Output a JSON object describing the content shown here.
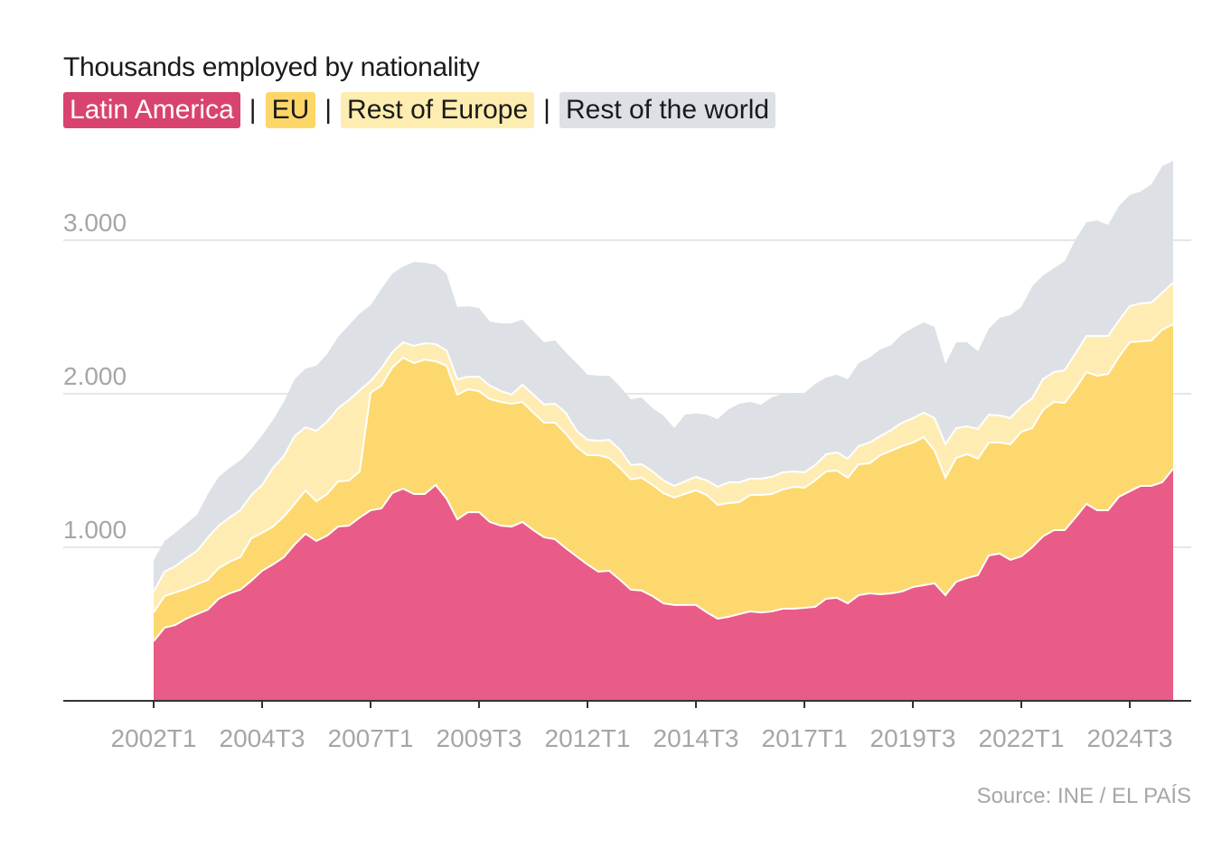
{
  "chart_data": {
    "type": "area",
    "stacked": true,
    "title": "Thousands employed by nationality",
    "source": "Source: INE / EL PAÍS",
    "x_ticks": [
      "2002T1",
      "2004T3",
      "2007T1",
      "2009T3",
      "2012T1",
      "2014T3",
      "2017T1",
      "2019T3",
      "2022T1",
      "2024T3"
    ],
    "y_ticks": [
      {
        "value": 1000,
        "label": "1.000"
      },
      {
        "value": 2000,
        "label": "2.000"
      },
      {
        "value": 3000,
        "label": "3.000"
      }
    ],
    "ylim": [
      0,
      3600
    ],
    "grid": true,
    "legend_placement": "top-left",
    "x": [
      "2002T1",
      "2002T2",
      "2002T3",
      "2002T4",
      "2003T1",
      "2003T2",
      "2003T3",
      "2003T4",
      "2004T1",
      "2004T2",
      "2004T3",
      "2004T4",
      "2005T1",
      "2005T2",
      "2005T3",
      "2005T4",
      "2006T1",
      "2006T2",
      "2006T3",
      "2006T4",
      "2007T1",
      "2007T2",
      "2007T3",
      "2007T4",
      "2008T1",
      "2008T2",
      "2008T3",
      "2008T4",
      "2009T1",
      "2009T2",
      "2009T3",
      "2009T4",
      "2010T1",
      "2010T2",
      "2010T3",
      "2010T4",
      "2011T1",
      "2011T2",
      "2011T3",
      "2011T4",
      "2012T1",
      "2012T2",
      "2012T3",
      "2012T4",
      "2013T1",
      "2013T2",
      "2013T3",
      "2013T4",
      "2014T1",
      "2014T2",
      "2014T3",
      "2014T4",
      "2015T1",
      "2015T2",
      "2015T3",
      "2015T4",
      "2016T1",
      "2016T2",
      "2016T3",
      "2016T4",
      "2017T1",
      "2017T2",
      "2017T3",
      "2017T4",
      "2018T1",
      "2018T2",
      "2018T3",
      "2018T4",
      "2019T1",
      "2019T2",
      "2019T3",
      "2019T4",
      "2020T1",
      "2020T2",
      "2020T3",
      "2020T4",
      "2021T1",
      "2021T2",
      "2021T3",
      "2021T4",
      "2022T1",
      "2022T2",
      "2022T3",
      "2022T4",
      "2023T1",
      "2023T2",
      "2023T3",
      "2023T4",
      "2024T1",
      "2024T2",
      "2024T3",
      "2024T4",
      "2025T1",
      "2025T2",
      "2025T3"
    ],
    "series": [
      {
        "name": "Latin America",
        "color": "#e95c87",
        "label_bg": "#d8436f",
        "label_color": "#ffffff",
        "values": [
          388,
          476,
          494,
          535,
          565,
          594,
          665,
          700,
          724,
          782,
          847,
          888,
          935,
          1018,
          1088,
          1041,
          1076,
          1135,
          1141,
          1194,
          1241,
          1253,
          1353,
          1382,
          1347,
          1347,
          1406,
          1318,
          1182,
          1229,
          1229,
          1165,
          1141,
          1135,
          1165,
          1112,
          1065,
          1053,
          994,
          941,
          888,
          841,
          847,
          788,
          724,
          718,
          682,
          635,
          624,
          624,
          624,
          576,
          535,
          547,
          565,
          582,
          576,
          582,
          600,
          600,
          606,
          612,
          665,
          671,
          635,
          688,
          700,
          694,
          700,
          712,
          741,
          753,
          765,
          688,
          776,
          800,
          818,
          947,
          959,
          918,
          941,
          1000,
          1071,
          1112,
          1112,
          1194,
          1282,
          1241,
          1241,
          1329,
          1365,
          1400,
          1400,
          1424,
          1512
        ]
      },
      {
        "name": "EU",
        "color": "#fdd86e",
        "label_bg": "#fdd668",
        "label_color": "#1a1a1a",
        "values": [
          188,
          206,
          212,
          194,
          194,
          194,
          200,
          206,
          212,
          276,
          247,
          247,
          265,
          265,
          282,
          259,
          271,
          294,
          294,
          300,
          765,
          800,
          818,
          853,
          853,
          876,
          806,
          865,
          812,
          800,
          788,
          800,
          806,
          800,
          782,
          765,
          747,
          759,
          747,
          712,
          712,
          759,
          735,
          729,
          718,
          735,
          724,
          718,
          700,
          724,
          747,
          765,
          741,
          741,
          729,
          759,
          765,
          765,
          776,
          794,
          782,
          824,
          829,
          829,
          818,
          853,
          847,
          906,
          929,
          947,
          941,
          965,
          865,
          765,
          806,
          806,
          759,
          735,
          724,
          753,
          812,
          776,
          824,
          835,
          829,
          841,
          859,
          876,
          888,
          912,
          971,
          941,
          947,
          994,
          941
        ]
      },
      {
        "name": "Rest of Europe",
        "color": "#feecb3",
        "label_bg": "#feedb0",
        "label_color": "#1a1a1a",
        "values": [
          135,
          159,
          171,
          200,
          218,
          276,
          276,
          288,
          306,
          282,
          312,
          382,
          394,
          441,
          412,
          459,
          471,
          476,
          524,
          529,
          76,
          112,
          100,
          100,
          112,
          106,
          112,
          100,
          100,
          82,
          94,
          88,
          71,
          59,
          112,
          118,
          118,
          124,
          135,
          106,
          100,
          94,
          118,
          118,
          94,
          88,
          88,
          82,
          76,
          82,
          88,
          94,
          118,
          135,
          129,
          106,
          106,
          112,
          112,
          100,
          100,
          100,
          112,
          118,
          124,
          118,
          135,
          124,
          135,
          153,
          159,
          159,
          212,
          218,
          194,
          182,
          194,
          182,
          176,
          171,
          165,
          194,
          200,
          194,
          212,
          229,
          235,
          259,
          247,
          235,
          235,
          247,
          247,
          241,
          271
        ]
      },
      {
        "name": "Rest of the world",
        "color": "#dde1e5",
        "label_bg": "#dde1e5",
        "label_color": "#1a1a1a",
        "values": [
          206,
          200,
          218,
          224,
          235,
          282,
          318,
          324,
          324,
          300,
          324,
          312,
          353,
          371,
          382,
          424,
          441,
          465,
          488,
          500,
          494,
          518,
          512,
          494,
          547,
          524,
          518,
          500,
          471,
          459,
          447,
          418,
          441,
          465,
          424,
          412,
          406,
          412,
          394,
          441,
          424,
          424,
          418,
          412,
          429,
          435,
          412,
          424,
          376,
          435,
          412,
          429,
          441,
          476,
          512,
          500,
          482,
          518,
          512,
          512,
          518,
          529,
          500,
          506,
          518,
          541,
          553,
          565,
          553,
          576,
          588,
          588,
          594,
          524,
          559,
          547,
          506,
          559,
          635,
          671,
          647,
          729,
          676,
          676,
          712,
          741,
          741,
          753,
          724,
          747,
          724,
          729,
          771,
          824,
          794
        ]
      }
    ]
  }
}
